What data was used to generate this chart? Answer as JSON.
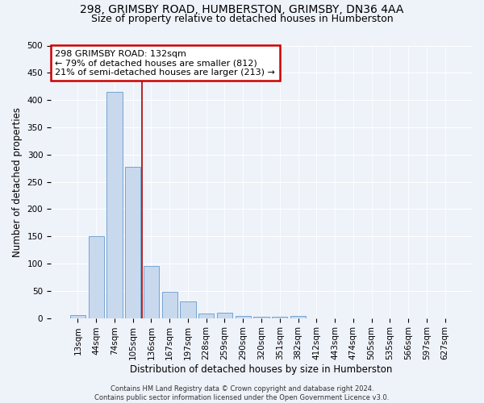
{
  "title1": "298, GRIMSBY ROAD, HUMBERSTON, GRIMSBY, DN36 4AA",
  "title2": "Size of property relative to detached houses in Humberston",
  "xlabel": "Distribution of detached houses by size in Humberston",
  "ylabel": "Number of detached properties",
  "categories": [
    "13sqm",
    "44sqm",
    "74sqm",
    "105sqm",
    "136sqm",
    "167sqm",
    "197sqm",
    "228sqm",
    "259sqm",
    "290sqm",
    "320sqm",
    "351sqm",
    "382sqm",
    "412sqm",
    "443sqm",
    "474sqm",
    "505sqm",
    "535sqm",
    "566sqm",
    "597sqm",
    "627sqm"
  ],
  "values": [
    5,
    150,
    415,
    278,
    95,
    48,
    30,
    8,
    10,
    4,
    2,
    2,
    4,
    0,
    0,
    0,
    0,
    0,
    0,
    0,
    0
  ],
  "bar_color": "#c8d9ee",
  "bar_edge_color": "#6699cc",
  "red_line_bar_index": 3,
  "annotation_line1": "298 GRIMSBY ROAD: 132sqm",
  "annotation_line2": "← 79% of detached houses are smaller (812)",
  "annotation_line3": "21% of semi-detached houses are larger (213) →",
  "annotation_box_color": "#ffffff",
  "annotation_box_edge": "#cc0000",
  "footnote1": "Contains HM Land Registry data © Crown copyright and database right 2024.",
  "footnote2": "Contains public sector information licensed under the Open Government Licence v3.0.",
  "bg_color": "#eef2f9",
  "ylim": [
    0,
    500
  ],
  "yticks": [
    0,
    50,
    100,
    150,
    200,
    250,
    300,
    350,
    400,
    450,
    500
  ],
  "title_fontsize": 10,
  "subtitle_fontsize": 9,
  "axis_label_fontsize": 8.5,
  "tick_fontsize": 7.5,
  "footnote_fontsize": 6
}
